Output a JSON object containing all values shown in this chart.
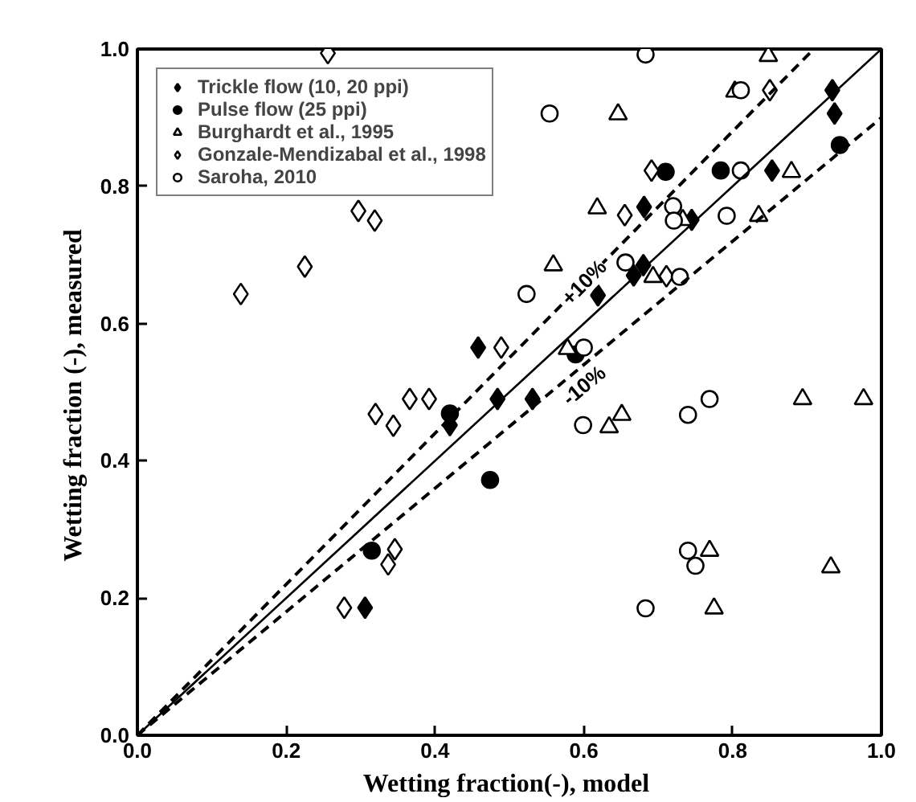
{
  "chart_data": {
    "type": "scatter",
    "xlabel": "Wetting  fraction(-), model",
    "ylabel": "Wetting  fraction (-), measured",
    "xlim": [
      0,
      1
    ],
    "ylim": [
      0,
      1
    ],
    "xticks": [
      {
        "value": 0,
        "label": "0.0"
      },
      {
        "value": 0.2,
        "label": "0.2"
      },
      {
        "value": 0.4,
        "label": "0.4"
      },
      {
        "value": 0.6,
        "label": "0.6"
      },
      {
        "value": 0.8,
        "label": "0.8"
      },
      {
        "value": 1,
        "label": "1.0"
      }
    ],
    "yticks": [
      {
        "value": 0,
        "label": "0.0"
      },
      {
        "value": 0.2,
        "label": "0.2"
      },
      {
        "value": 0.4,
        "label": "0.4"
      },
      {
        "value": 0.6,
        "label": "0.6"
      },
      {
        "value": 0.8,
        "label": "0.8"
      },
      {
        "value": 1,
        "label": "1.0"
      }
    ],
    "grid": false,
    "legend": "top left",
    "series": [
      {
        "name": "Trickle flow (10, 20 ppi)",
        "marker": "diamond",
        "color": "#000000",
        "x": [
          0.306,
          0.42,
          0.458,
          0.484,
          0.531,
          0.619,
          0.667,
          0.68,
          0.681,
          0.745,
          0.853,
          0.934,
          0.937
        ],
        "values": [
          0.186,
          0.452,
          0.565,
          0.49,
          0.49,
          0.641,
          0.67,
          0.685,
          0.77,
          0.751,
          0.823,
          0.94,
          0.906
        ]
      },
      {
        "name": "Pulse flow (25 ppi)",
        "marker": "circle",
        "color": "#000000",
        "x": [
          0.315,
          0.42,
          0.474,
          0.589,
          0.71,
          0.784,
          0.944
        ],
        "values": [
          0.269,
          0.469,
          0.372,
          0.555,
          0.821,
          0.823,
          0.86
        ]
      },
      {
        "name": "Burghardt et al., 1995",
        "marker": "triangle",
        "color": "#ffffff",
        "x": [
          0.559,
          0.578,
          0.618,
          0.634,
          0.646,
          0.651,
          0.693,
          0.733,
          0.769,
          0.775,
          0.803,
          0.835,
          0.848,
          0.879,
          0.894,
          0.932,
          0.976
        ],
        "values": [
          0.685,
          0.563,
          0.768,
          0.449,
          0.905,
          0.467,
          0.668,
          0.751,
          0.269,
          0.185,
          0.938,
          0.757,
          0.99,
          0.821,
          0.49,
          0.245,
          0.49
        ]
      },
      {
        "name": "Gonzale-Mendizabal et al., 1998",
        "marker": "diamond",
        "color": "#ffffff",
        "x": [
          0.139,
          0.225,
          0.256,
          0.278,
          0.297,
          0.319,
          0.32,
          0.337,
          0.344,
          0.346,
          0.366,
          0.392,
          0.489,
          0.655,
          0.691,
          0.711,
          0.85
        ],
        "values": [
          0.643,
          0.683,
          0.994,
          0.186,
          0.764,
          0.75,
          0.468,
          0.249,
          0.451,
          0.271,
          0.49,
          0.49,
          0.565,
          0.758,
          0.823,
          0.669,
          0.94
        ]
      },
      {
        "name": "Saroha, 2010",
        "marker": "circle",
        "color": "#ffffff",
        "x": [
          0.523,
          0.554,
          0.599,
          0.6,
          0.656,
          0.683,
          0.683,
          0.72,
          0.721,
          0.729,
          0.74,
          0.74,
          0.75,
          0.769,
          0.792,
          0.811,
          0.811
        ],
        "values": [
          0.643,
          0.906,
          0.452,
          0.565,
          0.689,
          0.992,
          0.185,
          0.771,
          0.75,
          0.668,
          0.467,
          0.269,
          0.247,
          0.49,
          0.757,
          0.94,
          0.823
        ]
      },
      {
        "type": "line",
        "line_style": "solid",
        "color": "#000000",
        "x": [
          0,
          1
        ],
        "values": [
          0,
          1
        ]
      },
      {
        "type": "line",
        "line_style": "dashed",
        "color": "#000000",
        "x": [
          0,
          0.909
        ],
        "values": [
          0,
          1
        ]
      },
      {
        "type": "line",
        "line_style": "dashed",
        "color": "#000000",
        "x": [
          0,
          1
        ],
        "values": [
          0,
          0.9
        ]
      }
    ],
    "annotations": [
      {
        "text": "+10%",
        "x": 0.6,
        "y": 0.66
      },
      {
        "text": "-10%",
        "x": 0.6,
        "y": 0.51
      }
    ]
  }
}
